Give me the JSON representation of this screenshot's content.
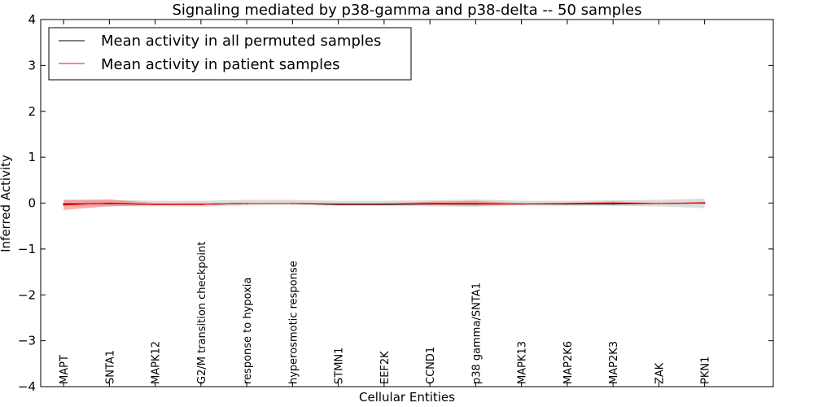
{
  "chart_data": {
    "type": "line",
    "title": "Signaling mediated by p38-gamma and p38-delta -- 50 samples",
    "xlabel": "Cellular Entities",
    "ylabel": "Inferred Activity",
    "ylim": [
      -4,
      4
    ],
    "yticks": [
      -4,
      -3,
      -2,
      -1,
      0,
      1,
      2,
      3,
      4
    ],
    "ytick_labels": [
      "−4",
      "−3",
      "−2",
      "−1",
      "0",
      "1",
      "2",
      "3",
      "4"
    ],
    "xlim": [
      -0.5,
      15.5
    ],
    "grid": false,
    "legend_position": "top-left",
    "categories": [
      "MAPT",
      "SNTA1",
      "MAPK12",
      "G2/M transition checkpoint",
      "response to hypoxia",
      "hyperosmotic response",
      "STMN1",
      "EEF2K",
      "CCND1",
      "p38 gamma/SNTA1",
      "MAPK13",
      "MAP2K6",
      "MAP2K3",
      "ZAK",
      "PKN1"
    ],
    "series": [
      {
        "name": "Mean activity in all permuted samples",
        "color": "#000000",
        "values": [
          -0.02,
          -0.01,
          -0.03,
          -0.03,
          -0.01,
          -0.01,
          -0.03,
          -0.03,
          -0.02,
          -0.02,
          -0.02,
          -0.02,
          -0.02,
          -0.01,
          0.0
        ],
        "band_lower": [
          -0.08,
          -0.07,
          -0.07,
          -0.08,
          -0.05,
          -0.04,
          -0.06,
          -0.06,
          -0.07,
          -0.08,
          -0.05,
          -0.06,
          -0.06,
          -0.07,
          -0.11
        ],
        "band_upper": [
          0.08,
          0.07,
          0.05,
          0.05,
          0.07,
          0.07,
          0.05,
          0.05,
          0.06,
          0.08,
          0.05,
          0.05,
          0.06,
          0.07,
          0.1
        ],
        "band_color": "#bbbbbb"
      },
      {
        "name": "Mean activity in patient samples",
        "color": "#ff0000",
        "values": [
          -0.04,
          0.0,
          -0.03,
          -0.03,
          -0.01,
          -0.01,
          -0.02,
          -0.02,
          -0.01,
          -0.01,
          -0.02,
          -0.01,
          0.0,
          -0.01,
          0.01
        ],
        "band_lower": [
          -0.15,
          -0.07,
          -0.04,
          -0.03,
          -0.01,
          -0.01,
          -0.03,
          -0.03,
          -0.04,
          -0.06,
          -0.03,
          -0.03,
          -0.02,
          -0.01,
          0.0
        ],
        "band_upper": [
          0.06,
          0.08,
          0.0,
          0.0,
          0.0,
          0.0,
          0.0,
          0.0,
          0.03,
          0.05,
          0.0,
          0.0,
          0.04,
          0.0,
          0.02
        ],
        "band_color": "#ff6666"
      }
    ]
  }
}
